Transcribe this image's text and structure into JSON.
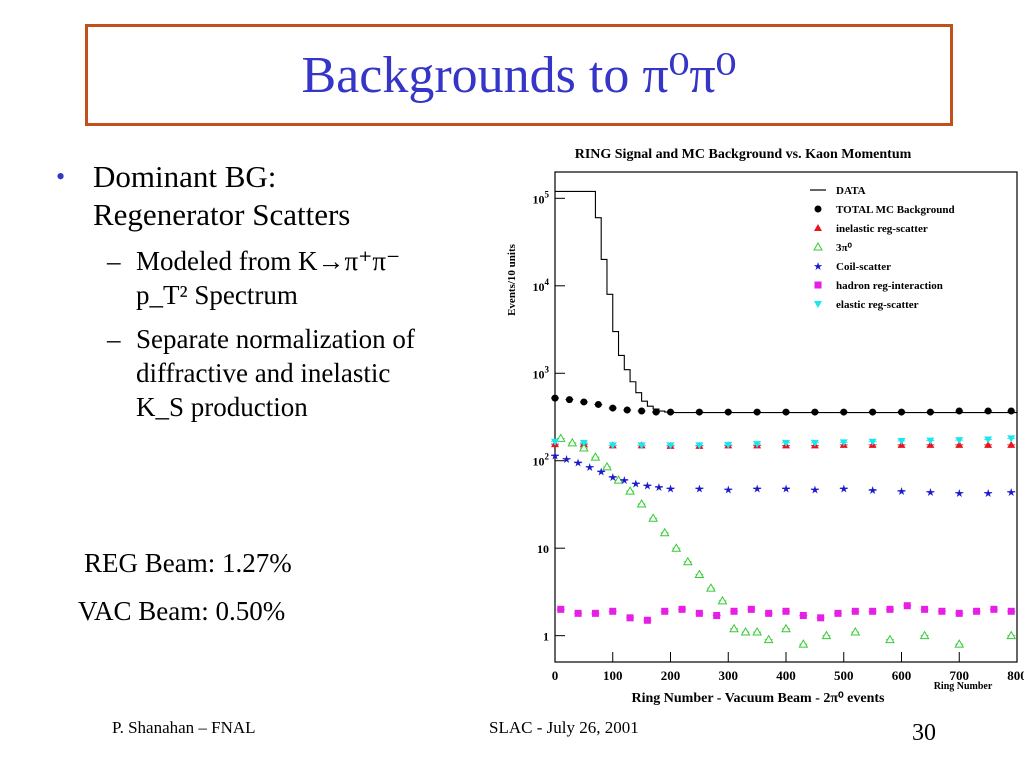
{
  "slide": {
    "title": "Backgrounds to π⁰π⁰",
    "bullet1_line1": "Dominant BG:",
    "bullet1_line2": "Regenerator Scatters",
    "sub1_line1": "Modeled from K→π⁺π⁻",
    "sub1_line2": "p_T² Spectrum",
    "sub2_line1": "Separate normalization of",
    "sub2_line2": "diffractive and inelastic",
    "sub2_line3": "K_S production",
    "reg_beam": "REG Beam: 1.27%",
    "vac_beam": "VAC Beam: 0.50%",
    "footer_left": "P. Shanahan – FNAL",
    "footer_center": "SLAC  -  July 26, 2001",
    "page_number": "30"
  },
  "colors": {
    "title": "#3535c8",
    "border": "#c0501c",
    "data": "#000000",
    "total_mc": "#000000",
    "inelastic": "#e8141e",
    "three_pi0": "#33cc33",
    "coil": "#1a1acc",
    "hadron": "#e61ee6",
    "elastic": "#1ae6f0"
  },
  "chart_data": {
    "type": "scatter",
    "title": "RING Signal and MC Background vs. Kaon Momentum",
    "xlabel": "Ring Number - Vacuum Beam - 2π⁰ events",
    "xlabel_corner": "Ring Number",
    "ylabel": "Events/10 units",
    "xlim": [
      0,
      800
    ],
    "ylim": [
      0.5,
      200000
    ],
    "log_y": true,
    "grid": false,
    "legend_position": "top-right",
    "x_ticks": [
      "0",
      "100",
      "200",
      "300",
      "400",
      "500",
      "600",
      "700",
      "800"
    ],
    "y_ticks": [
      {
        "value": 100000,
        "base": "10",
        "exp": "5"
      },
      {
        "value": 10000,
        "base": "10",
        "exp": "4"
      },
      {
        "value": 1000,
        "base": "10",
        "exp": "3"
      },
      {
        "value": 100,
        "base": "10",
        "exp": "2"
      },
      {
        "value": 10,
        "base": "10",
        "exp": ""
      },
      {
        "value": 1,
        "base": "1",
        "exp": ""
      }
    ],
    "series": [
      {
        "name": "DATA",
        "style": "step",
        "x": [
          0,
          50,
          70,
          80,
          90,
          100,
          110,
          120,
          130,
          140,
          150,
          160,
          170,
          180,
          190,
          200,
          800
        ],
        "y": [
          120000,
          120000,
          60000,
          20000,
          8000,
          3000,
          1600,
          1100,
          800,
          600,
          480,
          420,
          390,
          370,
          360,
          355,
          380
        ]
      },
      {
        "name": "TOTAL MC Background",
        "style": "circle",
        "x": [
          0,
          25,
          50,
          75,
          100,
          125,
          150,
          175,
          200,
          250,
          300,
          350,
          400,
          450,
          500,
          550,
          600,
          650,
          700,
          750,
          790
        ],
        "y": [
          520,
          500,
          470,
          440,
          400,
          380,
          370,
          360,
          360,
          360,
          360,
          360,
          360,
          360,
          360,
          360,
          360,
          360,
          370,
          370,
          370
        ]
      },
      {
        "name": "inelastic reg-scatter",
        "style": "triangle-up",
        "x": [
          0,
          50,
          100,
          150,
          200,
          250,
          300,
          350,
          400,
          450,
          500,
          550,
          600,
          650,
          700,
          750,
          790
        ],
        "y": [
          155,
          155,
          150,
          150,
          148,
          148,
          150,
          150,
          150,
          150,
          152,
          152,
          152,
          152,
          152,
          152,
          152
        ]
      },
      {
        "name": "3π⁰",
        "style": "triangle-open",
        "x": [
          10,
          30,
          50,
          70,
          90,
          110,
          130,
          150,
          170,
          190,
          210,
          230,
          250,
          270,
          290,
          310,
          330,
          350,
          370,
          400,
          430,
          470,
          520,
          580,
          640,
          700,
          790
        ],
        "y": [
          180,
          160,
          140,
          110,
          85,
          60,
          45,
          32,
          22,
          15,
          10,
          7,
          5,
          3.5,
          2.5,
          1.2,
          1.1,
          1.1,
          0.9,
          1.2,
          0.8,
          1.0,
          1.1,
          0.9,
          1.0,
          0.8,
          1.0
        ]
      },
      {
        "name": "Coil-scatter",
        "style": "star",
        "x": [
          0,
          20,
          40,
          60,
          80,
          100,
          120,
          140,
          160,
          180,
          200,
          250,
          300,
          350,
          400,
          450,
          500,
          550,
          600,
          650,
          700,
          750,
          790
        ],
        "y": [
          115,
          105,
          95,
          85,
          75,
          65,
          60,
          55,
          52,
          50,
          48,
          48,
          47,
          48,
          48,
          47,
          48,
          46,
          45,
          44,
          43,
          43,
          44
        ]
      },
      {
        "name": "hadron reg-interaction",
        "style": "square",
        "x": [
          10,
          40,
          70,
          100,
          130,
          160,
          190,
          220,
          250,
          280,
          310,
          340,
          370,
          400,
          430,
          460,
          490,
          520,
          550,
          580,
          610,
          640,
          670,
          700,
          730,
          760,
          790
        ],
        "y": [
          2.0,
          1.8,
          1.8,
          1.9,
          1.6,
          1.5,
          1.9,
          2.0,
          1.8,
          1.7,
          1.9,
          2.0,
          1.8,
          1.9,
          1.7,
          1.6,
          1.8,
          1.9,
          1.9,
          2.0,
          2.2,
          2.0,
          1.9,
          1.8,
          1.9,
          2.0,
          1.9
        ]
      },
      {
        "name": "elastic reg-scatter",
        "style": "triangle-down",
        "x": [
          0,
          50,
          100,
          150,
          200,
          250,
          300,
          350,
          400,
          450,
          500,
          550,
          600,
          650,
          700,
          750,
          790
        ],
        "y": [
          165,
          160,
          150,
          150,
          150,
          150,
          152,
          155,
          160,
          160,
          162,
          165,
          168,
          170,
          172,
          175,
          180
        ]
      }
    ]
  }
}
